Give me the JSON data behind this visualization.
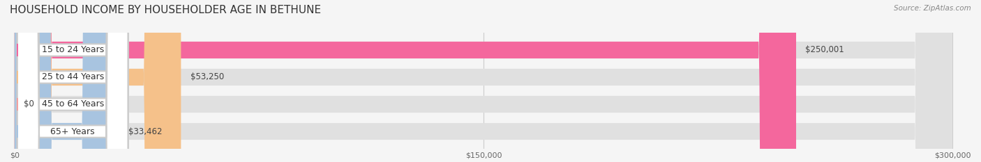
{
  "title": "HOUSEHOLD INCOME BY HOUSEHOLDER AGE IN BETHUNE",
  "source": "Source: ZipAtlas.com",
  "categories": [
    "15 to 24 Years",
    "25 to 44 Years",
    "45 to 64 Years",
    "65+ Years"
  ],
  "values": [
    250001,
    53250,
    0,
    33462
  ],
  "bar_colors": [
    "#F4679D",
    "#F5C18A",
    "#F4A0A0",
    "#A8C4E0"
  ],
  "max_value": 300000,
  "x_ticks": [
    0,
    150000,
    300000
  ],
  "x_tick_labels": [
    "$0",
    "$150,000",
    "$300,000"
  ],
  "background_color": "#f5f5f5",
  "bar_background_color": "#e0e0e0",
  "title_fontsize": 11,
  "label_fontsize": 9,
  "value_fontsize": 8.5
}
